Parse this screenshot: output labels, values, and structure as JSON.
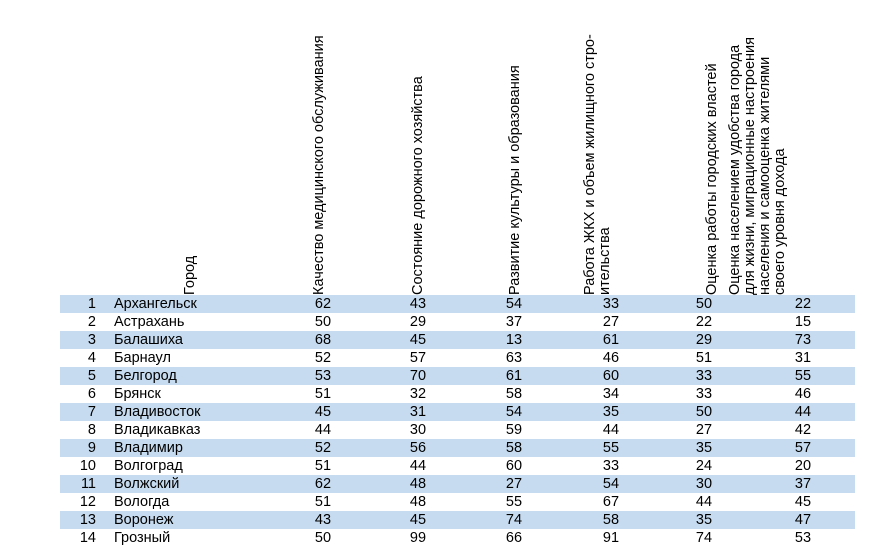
{
  "headers": {
    "city": "Город",
    "medical": "Качество медицинского обслуживания",
    "roads": "Состояние дорожного хозяйства",
    "culture": "Развитие культуры и образования",
    "housing": "Работа ЖКХ и объем жилищного стро-\nительства",
    "authorities": "Оценка работы городских властей",
    "convenience": "Оценка населением удобства города\nдля жизни, миграционные настроения\nнаселения и самооценка жителями\nсвоего уровня дохода"
  },
  "rows": [
    {
      "num": "1",
      "city": "Архангельск",
      "medical": "62",
      "roads": "43",
      "culture": "54",
      "housing": "33",
      "authorities": "50",
      "convenience": "22"
    },
    {
      "num": "2",
      "city": "Астрахань",
      "medical": "50",
      "roads": "29",
      "culture": "37",
      "housing": "27",
      "authorities": "22",
      "convenience": "15"
    },
    {
      "num": "3",
      "city": "Балашиха",
      "medical": "68",
      "roads": "45",
      "culture": "13",
      "housing": "61",
      "authorities": "29",
      "convenience": "73"
    },
    {
      "num": "4",
      "city": "Барнаул",
      "medical": "52",
      "roads": "57",
      "culture": "63",
      "housing": "46",
      "authorities": "51",
      "convenience": "31"
    },
    {
      "num": "5",
      "city": "Белгород",
      "medical": "53",
      "roads": "70",
      "culture": "61",
      "housing": "60",
      "authorities": "33",
      "convenience": "55"
    },
    {
      "num": "6",
      "city": "Брянск",
      "medical": "51",
      "roads": "32",
      "culture": "58",
      "housing": "34",
      "authorities": "33",
      "convenience": "46"
    },
    {
      "num": "7",
      "city": "Владивосток",
      "medical": "45",
      "roads": "31",
      "culture": "54",
      "housing": "35",
      "authorities": "50",
      "convenience": "44"
    },
    {
      "num": "8",
      "city": "Владикавказ",
      "medical": "44",
      "roads": "30",
      "culture": "59",
      "housing": "44",
      "authorities": "27",
      "convenience": "42"
    },
    {
      "num": "9",
      "city": "Владимир",
      "medical": "52",
      "roads": "56",
      "culture": "58",
      "housing": "55",
      "authorities": "35",
      "convenience": "57"
    },
    {
      "num": "10",
      "city": "Волгоград",
      "medical": "51",
      "roads": "44",
      "culture": "60",
      "housing": "33",
      "authorities": "24",
      "convenience": "20"
    },
    {
      "num": "11",
      "city": "Волжский",
      "medical": "62",
      "roads": "48",
      "culture": "27",
      "housing": "54",
      "authorities": "30",
      "convenience": "37"
    },
    {
      "num": "12",
      "city": "Вологда",
      "medical": "51",
      "roads": "48",
      "culture": "55",
      "housing": "67",
      "authorities": "44",
      "convenience": "45"
    },
    {
      "num": "13",
      "city": "Воронеж",
      "medical": "43",
      "roads": "45",
      "culture": "74",
      "housing": "58",
      "authorities": "35",
      "convenience": "47"
    },
    {
      "num": "14",
      "city": "Грозный",
      "medical": "50",
      "roads": "99",
      "culture": "66",
      "housing": "91",
      "authorities": "74",
      "convenience": "53"
    }
  ]
}
